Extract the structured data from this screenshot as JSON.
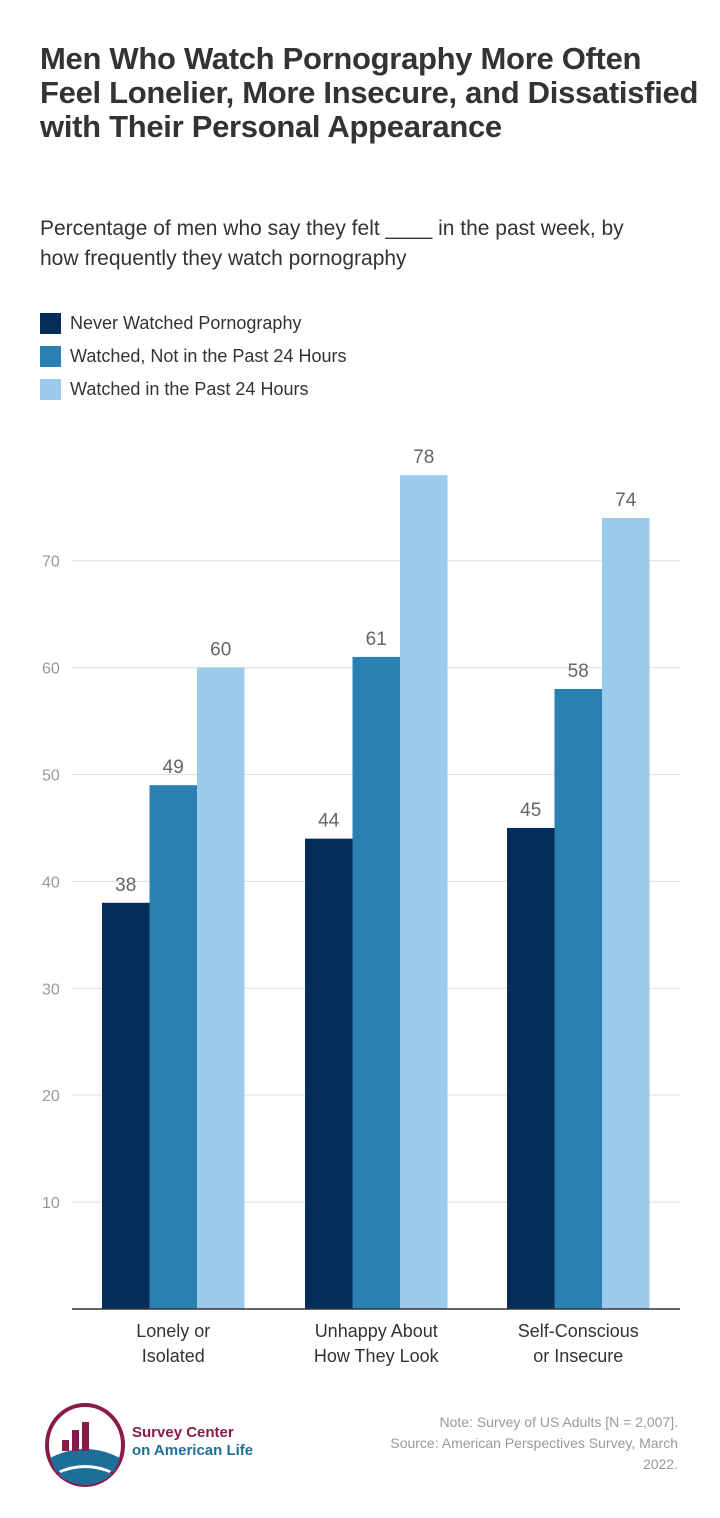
{
  "chart_data": {
    "type": "bar",
    "title": "Men Who Watch Pornography More Often Feel Lonelier, More Insecure, and Dissatisfied with Their Personal Appearance",
    "subtitle": "Percentage of men who say they felt ____ in the past week, by how frequently they watch pornography",
    "categories": [
      [
        "Lonely or",
        "Isolated"
      ],
      [
        "Unhappy About",
        "How They Look"
      ],
      [
        "Self-Conscious",
        "or Insecure"
      ]
    ],
    "series": [
      {
        "name": "Never Watched Pornography",
        "color": "#062d5a",
        "values": [
          38,
          44,
          45
        ]
      },
      {
        "name": "Watched, Not in the Past 24 Hours",
        "color": "#2a80b3",
        "values": [
          49,
          61,
          58
        ]
      },
      {
        "name": "Watched in the Past 24 Hours",
        "color": "#9acbea",
        "values": [
          60,
          78,
          74
        ]
      }
    ],
    "yticks": [
      10,
      20,
      30,
      40,
      50,
      60,
      70
    ],
    "ylim": [
      0,
      80
    ],
    "grid": true,
    "legend": "top-left",
    "xlabel": "",
    "ylabel": ""
  },
  "footer": {
    "logo_line1": "Survey Center",
    "logo_line2": "on American Life",
    "note_line1": "Note: Survey of US Adults [N = 2,007].",
    "note_line2": "Source: American Perspectives Survey, March",
    "note_line3": "2022."
  }
}
